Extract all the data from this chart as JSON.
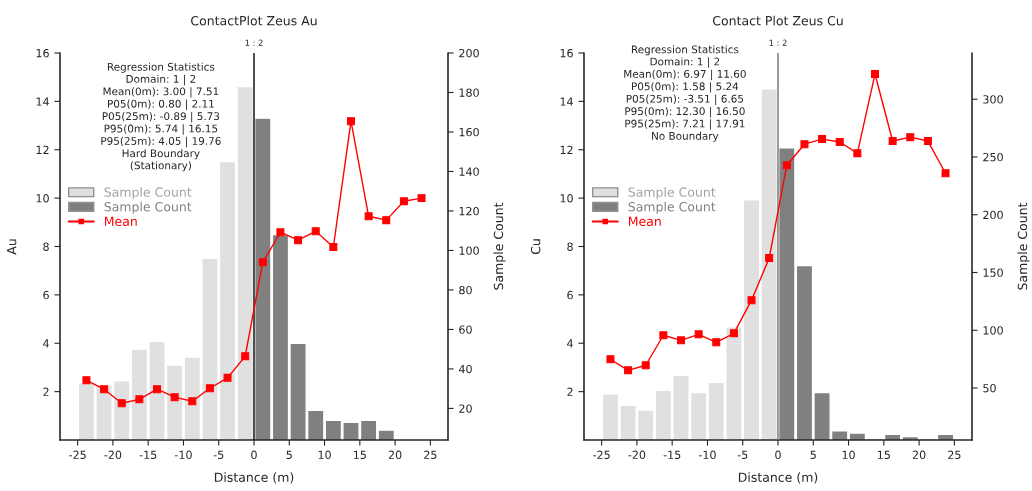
{
  "chart_data": [
    {
      "type": "bar",
      "title": "ContactPlot Zeus Au",
      "xlabel": "Distance (m)",
      "ylabel": "Au",
      "y2label": "Sample Count",
      "xlim": [
        -27.5,
        27.5
      ],
      "xticks": [
        -25,
        -20,
        -15,
        -10,
        -5,
        0,
        5,
        10,
        15,
        20,
        25
      ],
      "ylim": [
        0,
        16
      ],
      "yticks": [
        2,
        4,
        6,
        8,
        10,
        12,
        14,
        16
      ],
      "y2lim": [
        4,
        200
      ],
      "y2ticks": [
        20,
        40,
        60,
        80,
        100,
        120,
        140,
        160,
        180,
        200
      ],
      "legend": "left",
      "grid": false,
      "marker": "square",
      "ref_lines": [
        {
          "axis": "x",
          "value": 0,
          "color": "#000000"
        }
      ],
      "annotations": [
        {
          "text": "1 : 2",
          "x": 0,
          "y": 16
        },
        "Regression Statistics",
        "Domain: 1 | 2",
        "Mean(0m): 3.00 | 7.51",
        "P05(0m): 0.80 | 2.11",
        "P05(25m): -0.89 | 5.73",
        "P95(0m): 5.74 | 16.15",
        "P95(25m): 4.05 | 19.76",
        "Hard Boundary",
        "(Stationary)"
      ],
      "series": [
        {
          "name": "Sample Count",
          "axis": "y2",
          "color": "#e0e0e0",
          "x": [
            -23.75,
            -21.25,
            -18.75,
            -16.25,
            -13.75,
            -11.25,
            -8.75,
            -6.25,
            -3.75,
            -1.25
          ],
          "values": [
            33,
            32,
            34,
            50,
            54,
            42,
            46,
            96,
            145,
            183
          ]
        },
        {
          "name": "Sample Count",
          "axis": "y2",
          "color": "#808080",
          "x": [
            1.25,
            3.75,
            6.25,
            8.75,
            11.25,
            13.75,
            16.25,
            18.75
          ],
          "values": [
            167,
            108,
            53,
            19,
            14,
            13,
            14,
            9
          ]
        },
        {
          "name": "Mean",
          "type": "line",
          "color": "#ff0000",
          "x": [
            -23.75,
            -21.25,
            -18.75,
            -16.25,
            -13.75,
            -11.25,
            -8.75,
            -6.25,
            -3.75,
            -1.25,
            1.25,
            3.75,
            6.25,
            8.75,
            11.25,
            13.75,
            16.25,
            18.75,
            21.25,
            23.75
          ],
          "values": [
            2.47,
            2.1,
            1.52,
            1.68,
            2.1,
            1.77,
            1.6,
            2.14,
            2.57,
            3.46,
            7.35,
            8.59,
            8.26,
            8.63,
            7.98,
            13.18,
            9.25,
            9.09,
            9.87,
            10.0
          ]
        }
      ]
    },
    {
      "type": "bar",
      "title": "Contact Plot Zeus Cu",
      "xlabel": "Distance (m)",
      "ylabel": "Cu",
      "y2label": "Sample Count",
      "xlim": [
        -27.5,
        27.5
      ],
      "xticks": [
        -25,
        -20,
        -15,
        -10,
        -5,
        0,
        5,
        10,
        15,
        20,
        25
      ],
      "ylim": [
        0,
        16
      ],
      "yticks": [
        2,
        4,
        6,
        8,
        10,
        12,
        14,
        16
      ],
      "y2lim": [
        5,
        340
      ],
      "y2ticks": [
        50,
        100,
        150,
        200,
        250,
        300
      ],
      "legend": "left",
      "grid": false,
      "marker": "square",
      "ref_lines": [
        {
          "axis": "x",
          "value": 0,
          "color": "#707070"
        }
      ],
      "annotations": [
        {
          "text": "1 : 2",
          "x": 0,
          "y": 16
        },
        "Regression Statistics",
        "Domain: 1 | 2",
        "Mean(0m): 6.97 | 11.60",
        "P05(0m): 1.58 | 5.24",
        "P05(25m): -3.51 | 6.65",
        "P95(0m): 12.30 | 16.50",
        "P95(25m): 7.21 | 17.91",
        "No Boundary"
      ],
      "series": [
        {
          "name": "Sample Count",
          "axis": "y2",
          "color": "#e0e0e0",
          "x": [
            -23.75,
            -21.25,
            -18.75,
            -16.25,
            -13.75,
            -11.25,
            -8.75,
            -6.25,
            -3.75,
            -1.25
          ],
          "values": [
            45,
            35,
            31,
            48,
            61,
            46,
            55,
            103,
            213,
            309
          ]
        },
        {
          "name": "Sample Count",
          "axis": "y2",
          "color": "#808080",
          "x": [
            1.25,
            3.75,
            6.25,
            8.75,
            11.25,
            13.75,
            16.25,
            18.75,
            21.25,
            23.75
          ],
          "values": [
            258,
            156,
            46,
            13,
            11,
            6,
            10,
            8,
            6,
            10
          ]
        },
        {
          "name": "Mean",
          "type": "line",
          "color": "#ff0000",
          "x": [
            -23.75,
            -21.25,
            -18.75,
            -16.25,
            -13.75,
            -11.25,
            -8.75,
            -6.25,
            -3.75,
            -1.25,
            1.25,
            3.75,
            6.25,
            8.75,
            11.25,
            13.75,
            16.25,
            18.75,
            21.25,
            23.75
          ],
          "values": [
            3.34,
            2.88,
            3.09,
            4.33,
            4.12,
            4.37,
            4.04,
            4.41,
            5.78,
            7.52,
            11.36,
            12.23,
            12.44,
            12.32,
            11.86,
            15.13,
            12.36,
            12.52,
            12.36,
            11.03
          ]
        }
      ]
    }
  ]
}
